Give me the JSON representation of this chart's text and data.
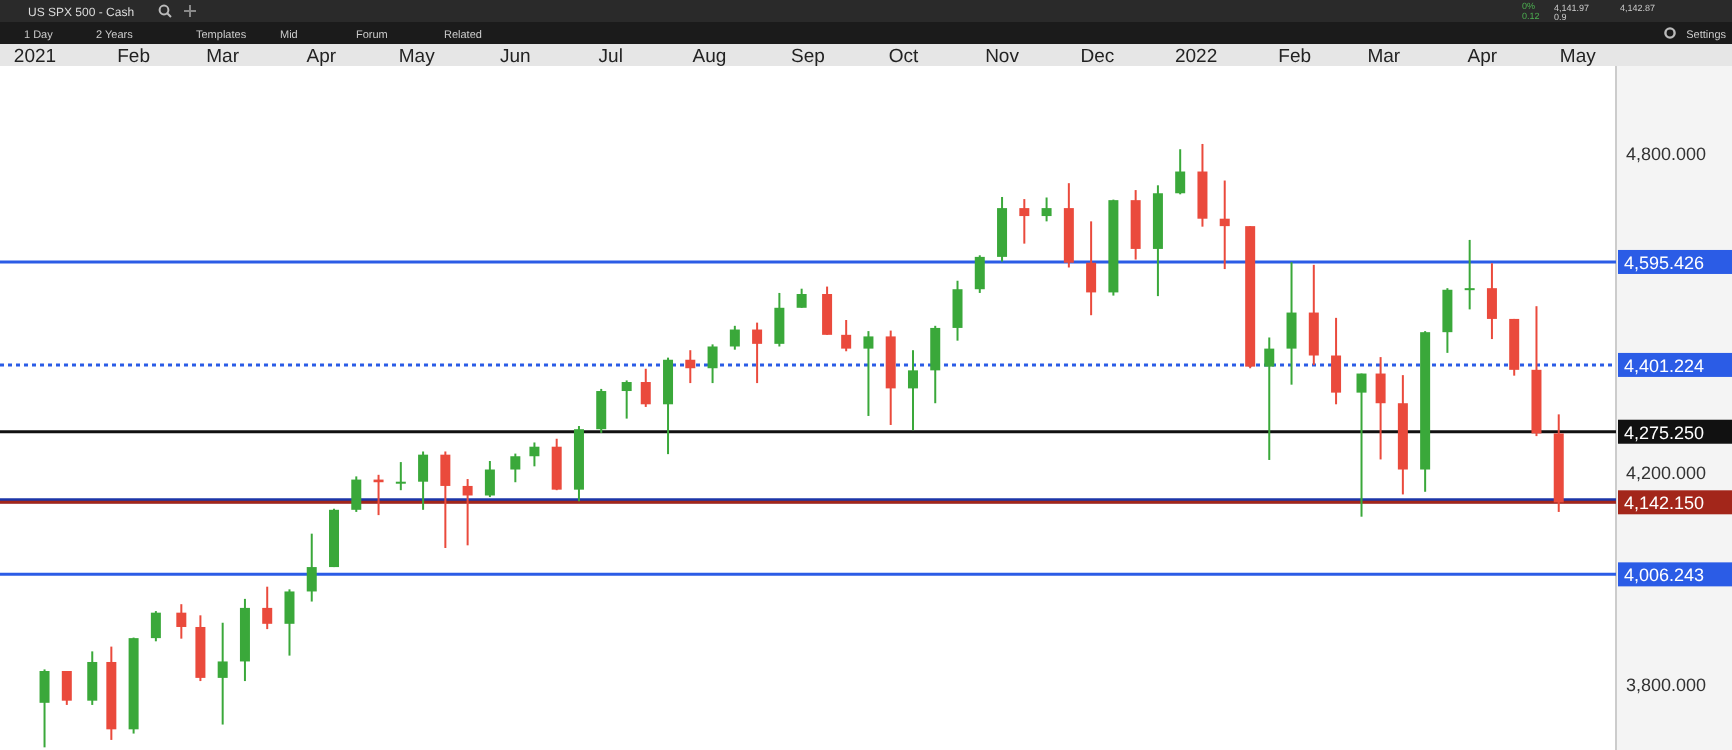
{
  "chart_data": {
    "type": "candlestick",
    "title": "US SPX 500 - Cash",
    "annotations": [
      "1 Day",
      "2 Years",
      "Templates",
      "Mid",
      "Forum",
      "Related",
      "Settings",
      "0%",
      "0.12",
      "4,141.97",
      "0.9",
      "4,142.87"
    ],
    "x": [
      "2021-01-04",
      "2021-01-11",
      "2021-01-19",
      "2021-01-25",
      "2021-02-01",
      "2021-02-08",
      "2021-02-16",
      "2021-02-22",
      "2021-03-01",
      "2021-03-08",
      "2021-03-15",
      "2021-03-22",
      "2021-03-29",
      "2021-04-05",
      "2021-04-12",
      "2021-04-19",
      "2021-04-26",
      "2021-05-03",
      "2021-05-10",
      "2021-05-17",
      "2021-05-24",
      "2021-06-01",
      "2021-06-07",
      "2021-06-14",
      "2021-06-21",
      "2021-06-28",
      "2021-07-06",
      "2021-07-12",
      "2021-07-19",
      "2021-07-26",
      "2021-08-02",
      "2021-08-09",
      "2021-08-16",
      "2021-08-23",
      "2021-08-30",
      "2021-09-07",
      "2021-09-13",
      "2021-09-20",
      "2021-09-27",
      "2021-10-04",
      "2021-10-11",
      "2021-10-18",
      "2021-10-25",
      "2021-11-01",
      "2021-11-08",
      "2021-11-15",
      "2021-11-22",
      "2021-11-29",
      "2021-12-06",
      "2021-12-13",
      "2021-12-20",
      "2021-12-27",
      "2022-01-03",
      "2022-01-10",
      "2022-01-18",
      "2022-01-24",
      "2022-01-31",
      "2022-02-07",
      "2022-02-14",
      "2022-02-22",
      "2022-02-28",
      "2022-03-07",
      "2022-03-14",
      "2022-03-21",
      "2022-03-28",
      "2022-04-04",
      "2022-04-11",
      "2022-04-18",
      "2022-04-25"
    ],
    "ohlc": [
      [
        3764,
        3827,
        3680,
        3824
      ],
      [
        3824,
        3824,
        3760,
        3768
      ],
      [
        3768,
        3861,
        3760,
        3841
      ],
      [
        3841,
        3870,
        3694,
        3714
      ],
      [
        3714,
        3887,
        3706,
        3886
      ],
      [
        3886,
        3937,
        3880,
        3934
      ],
      [
        3934,
        3950,
        3885,
        3907
      ],
      [
        3907,
        3929,
        3805,
        3811
      ],
      [
        3811,
        3915,
        3723,
        3842
      ],
      [
        3842,
        3960,
        3805,
        3943
      ],
      [
        3943,
        3983,
        3903,
        3913
      ],
      [
        3913,
        3978,
        3853,
        3974
      ],
      [
        3974,
        4083,
        3955,
        4020
      ],
      [
        4020,
        4130,
        4020,
        4128
      ],
      [
        4128,
        4191,
        4124,
        4185
      ],
      [
        4185,
        4194,
        4118,
        4180
      ],
      [
        4180,
        4218,
        4165,
        4181
      ],
      [
        4181,
        4238,
        4128,
        4232
      ],
      [
        4232,
        4238,
        4056,
        4173
      ],
      [
        4173,
        4186,
        4061,
        4155
      ],
      [
        4155,
        4220,
        4152,
        4204
      ],
      [
        4204,
        4234,
        4180,
        4229
      ],
      [
        4229,
        4255,
        4210,
        4247
      ],
      [
        4247,
        4262,
        4165,
        4166
      ],
      [
        4166,
        4286,
        4144,
        4280
      ],
      [
        4280,
        4356,
        4273,
        4352
      ],
      [
        4352,
        4372,
        4300,
        4369
      ],
      [
        4369,
        4394,
        4322,
        4327
      ],
      [
        4327,
        4415,
        4233,
        4411
      ],
      [
        4411,
        4429,
        4367,
        4395
      ],
      [
        4395,
        4440,
        4367,
        4436
      ],
      [
        4436,
        4475,
        4430,
        4468
      ],
      [
        4468,
        4481,
        4367,
        4441
      ],
      [
        4441,
        4537,
        4436,
        4509
      ],
      [
        4509,
        4545,
        4509,
        4535
      ],
      [
        4535,
        4549,
        4458,
        4458
      ],
      [
        4458,
        4486,
        4427,
        4432
      ],
      [
        4432,
        4465,
        4305,
        4455
      ],
      [
        4455,
        4466,
        4288,
        4357
      ],
      [
        4357,
        4429,
        4278,
        4391
      ],
      [
        4391,
        4475,
        4329,
        4471
      ],
      [
        4471,
        4560,
        4447,
        4544
      ],
      [
        4544,
        4608,
        4537,
        4605
      ],
      [
        4605,
        4718,
        4596,
        4697
      ],
      [
        4697,
        4714,
        4630,
        4682
      ],
      [
        4682,
        4717,
        4672,
        4697
      ],
      [
        4697,
        4744,
        4585,
        4594
      ],
      [
        4594,
        4672,
        4495,
        4538
      ],
      [
        4538,
        4713,
        4532,
        4712
      ],
      [
        4712,
        4731,
        4600,
        4620
      ],
      [
        4620,
        4740,
        4531,
        4725
      ],
      [
        4725,
        4808,
        4723,
        4766
      ],
      [
        4766,
        4818,
        4662,
        4677
      ],
      [
        4677,
        4749,
        4582,
        4663
      ],
      [
        4663,
        4663,
        4395,
        4398
      ],
      [
        4398,
        4453,
        4222,
        4432
      ],
      [
        4432,
        4595,
        4364,
        4500
      ],
      [
        4500,
        4590,
        4401,
        4419
      ],
      [
        4419,
        4490,
        4327,
        4349
      ],
      [
        4349,
        4385,
        4115,
        4385
      ],
      [
        4385,
        4416,
        4223,
        4329
      ],
      [
        4329,
        4382,
        4157,
        4204
      ],
      [
        4204,
        4465,
        4162,
        4463
      ],
      [
        4463,
        4546,
        4424,
        4543
      ],
      [
        4543,
        4637,
        4506,
        4546
      ],
      [
        4546,
        4593,
        4450,
        4488
      ],
      [
        4488,
        4488,
        4381,
        4392
      ],
      [
        4392,
        4512,
        4267,
        4272
      ],
      [
        4272,
        4308,
        4124,
        4142
      ]
    ],
    "xlim": [
      "2020-12-21",
      "2022-05-13"
    ],
    "xticks": [
      {
        "value": "2021-01-01",
        "label": "2021"
      },
      {
        "value": "2021-02-01",
        "label": "Feb"
      },
      {
        "value": "2021-03-01",
        "label": "Mar"
      },
      {
        "value": "2021-04-01",
        "label": "Apr"
      },
      {
        "value": "2021-05-01",
        "label": "May"
      },
      {
        "value": "2021-06-01",
        "label": "Jun"
      },
      {
        "value": "2021-07-01",
        "label": "Jul"
      },
      {
        "value": "2021-08-01",
        "label": "Aug"
      },
      {
        "value": "2021-09-01",
        "label": "Sep"
      },
      {
        "value": "2021-10-01",
        "label": "Oct"
      },
      {
        "value": "2021-11-01",
        "label": "Nov"
      },
      {
        "value": "2021-12-01",
        "label": "Dec"
      },
      {
        "value": "2022-01-01",
        "label": "2022"
      },
      {
        "value": "2022-02-01",
        "label": "Feb"
      },
      {
        "value": "2022-03-01",
        "label": "Mar"
      },
      {
        "value": "2022-04-01",
        "label": "Apr"
      },
      {
        "value": "2022-05-01",
        "label": "May"
      }
    ],
    "ylim": [
      3675,
      4965
    ],
    "yticks": [
      {
        "value": 3800,
        "label": "3,800.000"
      },
      {
        "value": 4200,
        "label": "4,200.000"
      },
      {
        "value": 4800,
        "label": "4,800.000"
      }
    ],
    "ref_lines": [
      {
        "axis": "y",
        "value": 4595.426,
        "label": "4,595.426",
        "color": "#2b5ce6",
        "line_style": "solid"
      },
      {
        "axis": "y",
        "value": 4401.224,
        "label": "4,401.224",
        "color": "#2b5ce6",
        "line_style": "dotted"
      },
      {
        "axis": "y",
        "value": 4275.25,
        "label": "4,275.250",
        "color": "#111111",
        "line_style": "solid"
      },
      {
        "axis": "y",
        "value": 4145,
        "color": "#1c36a8",
        "line_style": "solid"
      },
      {
        "axis": "y",
        "value": 4142.15,
        "label": "4,142.150",
        "color": "#a3261a",
        "line_style": "solid"
      },
      {
        "axis": "y",
        "value": 4006.243,
        "label": "4,006.243",
        "color": "#2b5ce6",
        "line_style": "solid"
      }
    ],
    "grid": false
  }
}
